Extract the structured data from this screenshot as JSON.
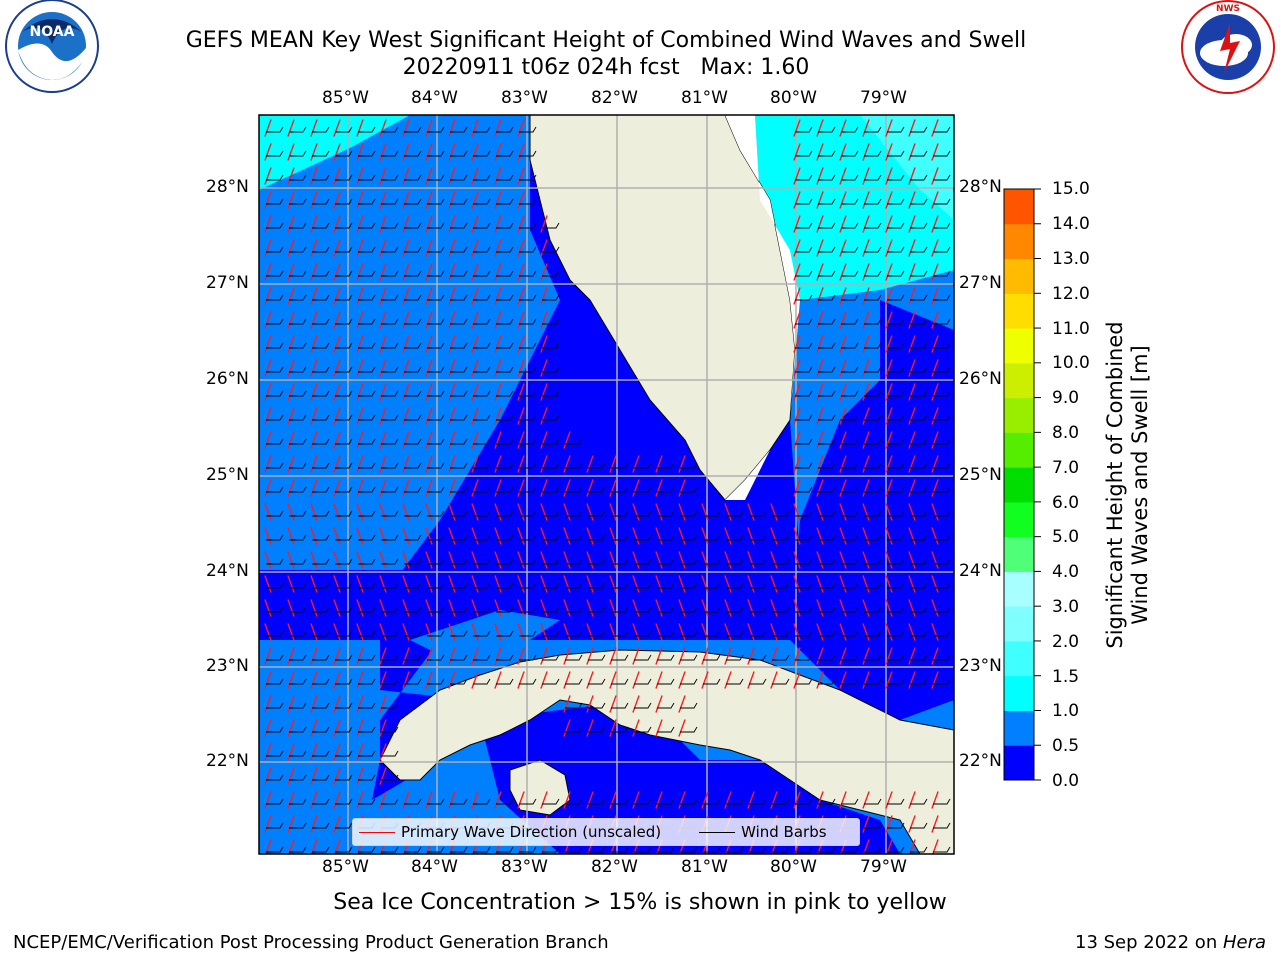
{
  "title": {
    "line1": "GEFS MEAN Key West Significant Height of Combined Wind Waves and Swell",
    "line2": "20220911 t06z 024h fcst   Max: 1.60"
  },
  "logos": {
    "left": {
      "text": "NOAA",
      "ring_text": "NATIONAL OCEANIC AND ATMOSPHERIC ADMINISTRATION · U.S. DEPARTMENT OF COMMERCE"
    },
    "right": {
      "ring_text": "NATIONAL WEATHER SERVICE"
    }
  },
  "map": {
    "lon_labels": [
      "85°W",
      "84°W",
      "83°W",
      "82°W",
      "81°W",
      "80°W",
      "79°W"
    ],
    "lat_labels": [
      "28°N",
      "27°N",
      "26°N",
      "25°N",
      "24°N",
      "23°N",
      "22°N"
    ]
  },
  "legend": {
    "wave_label": "Primary Wave Direction (unscaled)",
    "wind_label": "Wind Barbs",
    "wave_color": "#ff0000",
    "wind_color": "#000000"
  },
  "colorbar": {
    "label_line1": "Significant Height of Combined",
    "label_line2": "Wind Waves and Swell [m]",
    "ticks": [
      "15.0",
      "14.0",
      "13.0",
      "12.0",
      "11.0",
      "10.0",
      "9.0",
      "8.0",
      "7.0",
      "6.0",
      "5.0",
      "4.0",
      "3.0",
      "2.0",
      "1.5",
      "1.0",
      "0.5",
      "0.0"
    ],
    "colors": [
      "#0000ff",
      "#0080ff",
      "#00ffff",
      "#40ffff",
      "#80ffff",
      "#a8ffff",
      "#50ff78",
      "#10ff20",
      "#00dd00",
      "#55ee00",
      "#99ee00",
      "#ccee00",
      "#eeff00",
      "#ffff00",
      "#ffdd00",
      "#ffbb00",
      "#ff8800",
      "#ff6600",
      "#ff3300",
      "#ff0000"
    ]
  },
  "caption": "Sea Ice Concentration > 15% is shown in pink to yellow",
  "footer": {
    "left": "NCEP/EMC/Verification Post Processing Product Generation Branch",
    "right_prefix": "13 Sep 2022 on ",
    "right_machine": "Hera"
  }
}
